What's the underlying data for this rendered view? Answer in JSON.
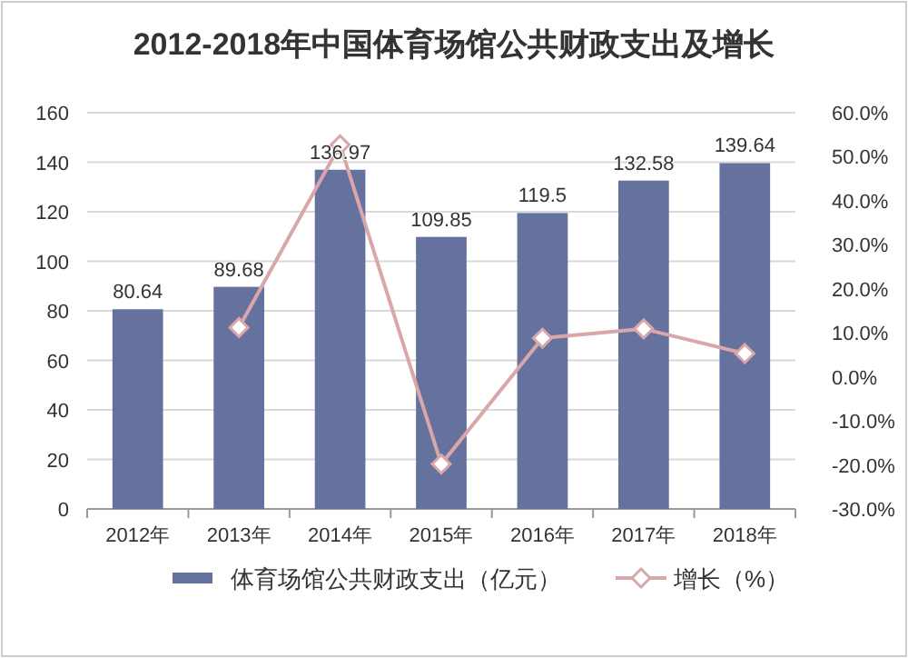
{
  "chart_data": {
    "type": "bar",
    "title": "2012-2018年中国体育场馆公共财政支出及增长",
    "categories": [
      "2012年",
      "2013年",
      "2014年",
      "2015年",
      "2016年",
      "2017年",
      "2018年"
    ],
    "series": [
      {
        "name": "体育场馆公共财政支出（亿元）",
        "color": "#66729e",
        "values": [
          80.64,
          89.68,
          136.97,
          109.85,
          119.5,
          132.58,
          139.64
        ],
        "value_labels": [
          "80.64",
          "89.68",
          "136.97",
          "109.85",
          "119.5",
          "132.58",
          "139.64"
        ]
      },
      {
        "name": "增长（%）",
        "type": "line",
        "axis": "y2",
        "color": "#d9a7aa",
        "marker": "diamond",
        "values": [
          null,
          11.2,
          52.7,
          -19.8,
          8.8,
          10.9,
          5.3
        ]
      }
    ],
    "ylim": [
      0,
      160
    ],
    "yticks": [
      0,
      20,
      40,
      60,
      80,
      100,
      120,
      140,
      160
    ],
    "y2lim": [
      -30,
      60
    ],
    "y2ticks": [
      {
        "value": -30,
        "label": "-30.0%"
      },
      {
        "value": -20,
        "label": "-20.0%"
      },
      {
        "value": -10,
        "label": "-10.0%"
      },
      {
        "value": 0,
        "label": "0.0%"
      },
      {
        "value": 10,
        "label": "10.0%"
      },
      {
        "value": 20,
        "label": "20.0%"
      },
      {
        "value": 30,
        "label": "30.0%"
      },
      {
        "value": 40,
        "label": "40.0%"
      },
      {
        "value": 50,
        "label": "50.0%"
      },
      {
        "value": 60,
        "label": "60.0%"
      }
    ],
    "grid": "y",
    "legend": "bottom"
  }
}
